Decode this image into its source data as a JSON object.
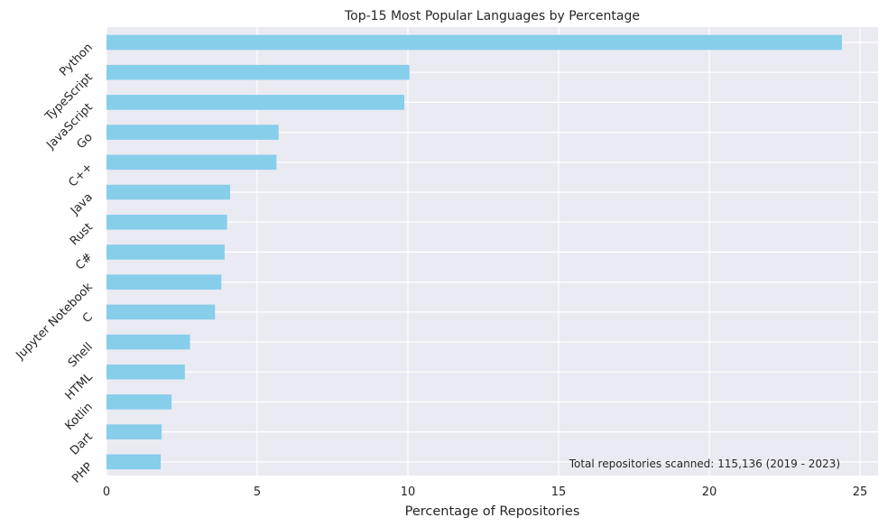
{
  "chart_data": {
    "type": "bar",
    "orientation": "horizontal",
    "title": "Top-15 Most Popular Languages by Percentage",
    "xlabel": "Percentage of Repositories",
    "ylabel": "",
    "categories": [
      "Python",
      "TypeScript",
      "JavaScript",
      "Go",
      "C++",
      "Java",
      "Rust",
      "C#",
      "Jupyter Notebook",
      "C",
      "Shell",
      "HTML",
      "Kotlin",
      "Dart",
      "PHP"
    ],
    "values": [
      24.4,
      10.05,
      9.88,
      5.71,
      5.64,
      4.1,
      4.0,
      3.92,
      3.81,
      3.6,
      2.77,
      2.6,
      2.16,
      1.83,
      1.8
    ],
    "xlim": [
      0,
      25.6
    ],
    "xticks": [
      0,
      5,
      10,
      15,
      20,
      25
    ],
    "grid": true,
    "bar_color": "#87CEEB",
    "background_color": "#EAEAF2",
    "grid_color": "#FFFFFF",
    "annotation": "Total repositories scanned: 115,136 (2019 - 2023)"
  }
}
